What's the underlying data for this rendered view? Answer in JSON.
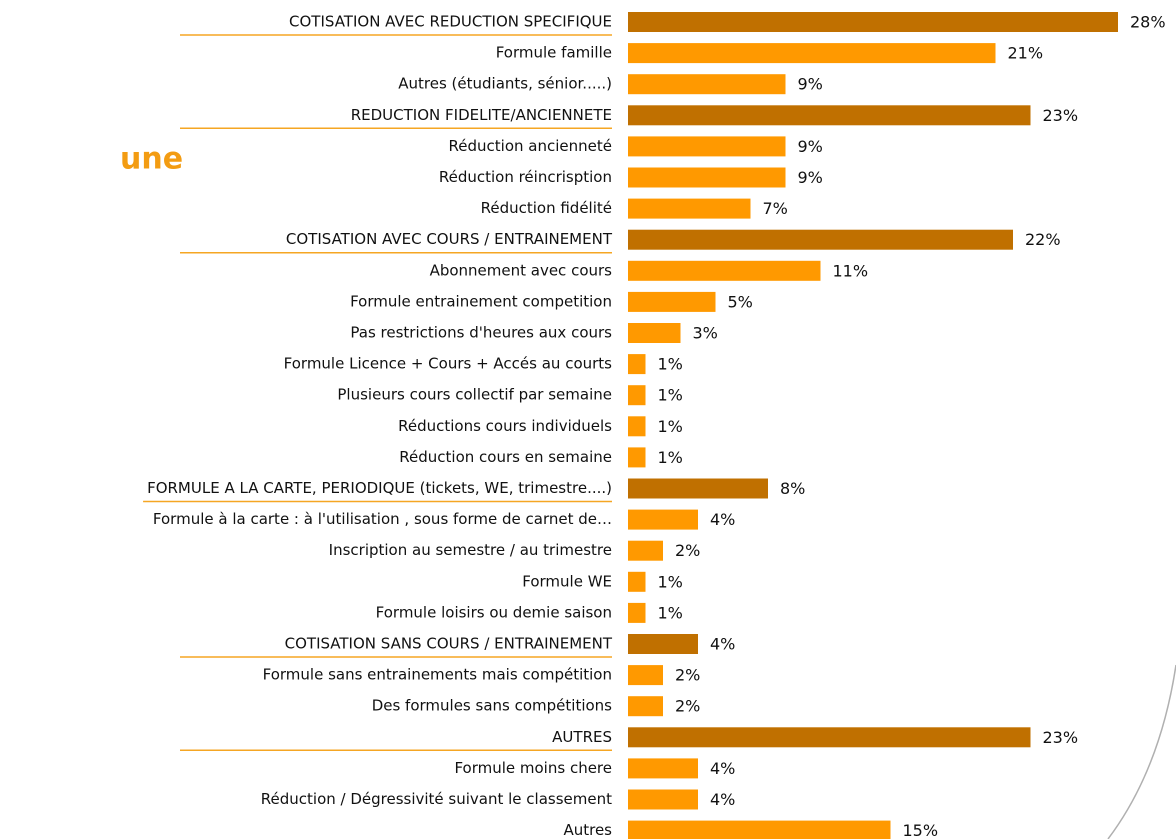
{
  "title_fragment": "une",
  "chart_data": {
    "type": "barh",
    "categories": [
      "COTISATION AVEC REDUCTION SPECIFIQUE",
      "Formule famille",
      "Autres (étudiants, sénior.....)",
      "REDUCTION FIDELITE/ANCIENNETE",
      "Réduction ancienneté",
      "Réduction réincrisption",
      "Réduction fidélité",
      "COTISATION AVEC COURS / ENTRAINEMENT",
      "Abonnement avec cours",
      "Formule entrainement competition",
      "Pas restrictions d'heures aux cours",
      "Formule Licence + Cours + Accés au courts",
      "Plusieurs cours collectif par semaine",
      "Réductions cours individuels",
      "Réduction cours en semaine",
      "FORMULE A LA CARTE, PERIODIQUE (tickets, WE, trimestre....)",
      "Formule à la carte : à l'utilisation , sous forme de carnet de…",
      "Inscription au semestre / au trimestre",
      "Formule WE",
      "Formule loisirs ou demie saison",
      "COTISATION SANS COURS / ENTRAINEMENT",
      "Formule sans entrainements mais compétition",
      "Des formules sans compétitions",
      "AUTRES",
      "Formule moins chere",
      "Réduction / Dégressivité suivant le classement",
      "Autres"
    ],
    "values": [
      28,
      21,
      9,
      23,
      9,
      9,
      7,
      22,
      11,
      5,
      3,
      1,
      1,
      1,
      1,
      8,
      4,
      2,
      1,
      1,
      4,
      2,
      2,
      23,
      4,
      4,
      15
    ],
    "value_labels": [
      "28%",
      "21%",
      "9%",
      "23%",
      "9%",
      "9%",
      "7%",
      "22%",
      "11%",
      "5%",
      "3%",
      "1%",
      "1%",
      "1%",
      "1%",
      "8%",
      "4%",
      "2%",
      "1%",
      "1%",
      "4%",
      "2%",
      "2%",
      "23%",
      "4%",
      "4%",
      "15%"
    ],
    "colors": [
      "#c07000",
      "#ff9900",
      "#ff9900",
      "#c07000",
      "#ff9900",
      "#ff9900",
      "#ff9900",
      "#c07000",
      "#ff9900",
      "#ff9900",
      "#ff9900",
      "#ff9900",
      "#ff9900",
      "#ff9900",
      "#ff9900",
      "#c07000",
      "#ff9900",
      "#ff9900",
      "#ff9900",
      "#ff9900",
      "#c07000",
      "#ff9900",
      "#ff9900",
      "#c07000",
      "#ff9900",
      "#ff9900",
      "#ff9900"
    ],
    "xlim": [
      0,
      28
    ]
  }
}
